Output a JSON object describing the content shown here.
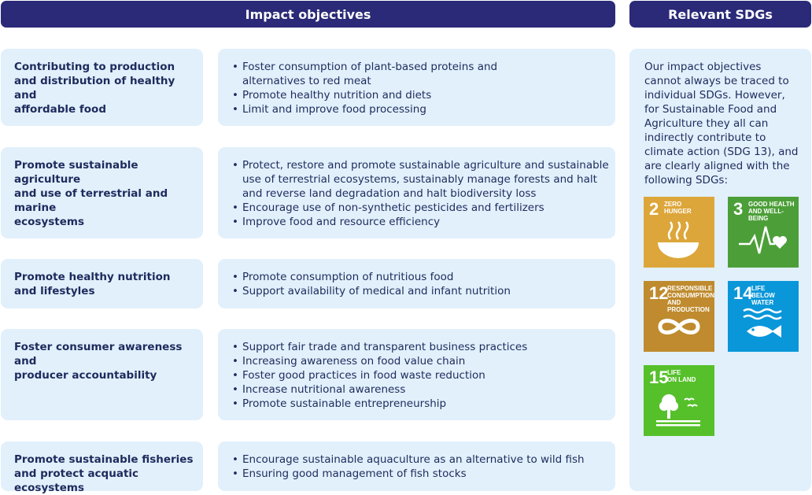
{
  "headers": {
    "impact_objectives": "Impact objectives",
    "relevant_sdgs": "Relevant SDGs"
  },
  "objectives": [
    {
      "title": "Contributing to production\nand distribution of healthy and\naffordable food",
      "bullets": [
        "Foster consumption of plant-based proteins and\nalternatives to red meat",
        "Promote healthy nutrition and diets",
        "Limit and improve food processing"
      ]
    },
    {
      "title": "Promote sustainable agriculture\nand use of terrestrial and marine\necosystems",
      "bullets": [
        "Protect, restore and promote sustainable agriculture and sustainable\nuse of terrestrial ecosystems, sustainably manage forests and halt\nand reverse land degradation and halt biodiversity loss",
        "Encourage use of non-synthetic pesticides and fertilizers",
        "Improve food and resource efficiency"
      ]
    },
    {
      "title": "Promote healthy nutrition\nand lifestyles",
      "bullets": [
        "Promote consumption of nutritious food",
        "Support availability of medical and infant nutrition"
      ]
    },
    {
      "title": "Foster consumer awareness and\nproducer accountability",
      "bullets": [
        "Support fair trade and transparent business practices",
        "Increasing awareness on food value chain",
        "Foster good practices in food waste reduction",
        "Increase nutritional awareness",
        "Promote sustainable entrepreneurship"
      ]
    },
    {
      "title": "Promote sustainable fisheries\nand protect acquatic ecosystems",
      "bullets": [
        "Encourage sustainable aquaculture as an alternative to wild fish",
        "Ensuring good management of fish stocks"
      ]
    }
  ],
  "sdg_intro": "Our impact objectives\ncannot always be traced to\nindividual SDGs. However,\nfor Sustainable Food and\nAgriculture they all can\nindirectly contribute to\nclimate action (SDG 13), and\nare clearly aligned with the\nfollowing SDGs:",
  "sdgs": [
    {
      "number": "2",
      "label": "Zero\nhunger",
      "color": "#dda63a",
      "icon": "bowl-icon"
    },
    {
      "number": "3",
      "label": "Good health\nand well-being",
      "color": "#4c9f38",
      "icon": "heartbeat-icon"
    },
    {
      "number": "12",
      "label": "Responsible\nconsumption\nand production",
      "color": "#bf8b2e",
      "icon": "infinity-icon"
    },
    {
      "number": "14",
      "label": "Life\nbelow water",
      "color": "#0a97d9",
      "icon": "fish-icon"
    },
    {
      "number": "15",
      "label": "Life\non land",
      "color": "#56c02b",
      "icon": "tree-icon"
    }
  ]
}
